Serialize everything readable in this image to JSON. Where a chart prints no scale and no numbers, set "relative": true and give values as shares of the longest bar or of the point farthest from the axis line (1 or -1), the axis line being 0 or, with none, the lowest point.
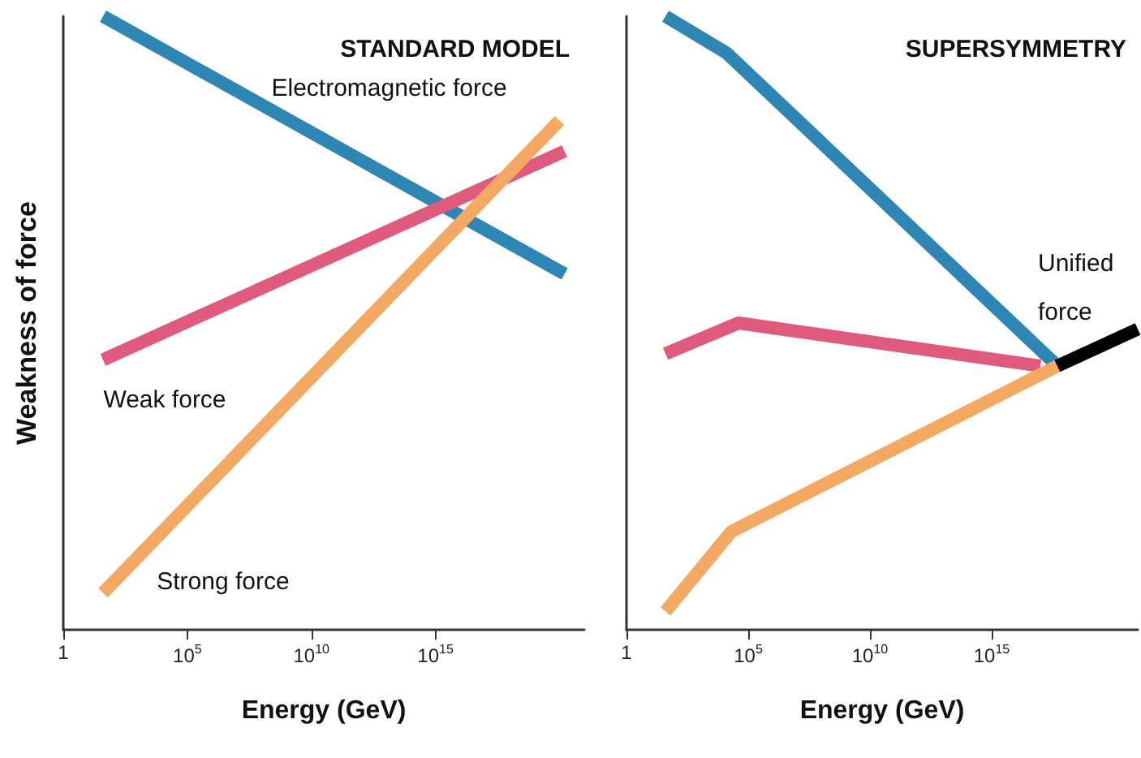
{
  "chart_data": [
    {
      "type": "line",
      "title": "STANDARD MODEL",
      "xlabel": "Energy (GeV)",
      "ylabel": "Weakness of force",
      "relative": true,
      "log": "x",
      "marker": "none",
      "line_style": "solid",
      "xlim": [
        1,
        1e+21
      ],
      "xticks": [
        {
          "value": 1,
          "label": "1"
        },
        {
          "value": 100000.0,
          "label": "10$^{5}$"
        },
        {
          "value": 10000000000.0,
          "label": "10$^{10}$"
        },
        {
          "value": 1000000000000000.0,
          "label": "10$^{15}$"
        }
      ],
      "series": [
        {
          "name": "Electromagnetic force",
          "color": "#2e86b4",
          "x": [
            40,
            1.6e+20
          ],
          "values": [
            1,
            0.58
          ]
        },
        {
          "name": "Weak force",
          "color": "#e05a7e",
          "x": [
            40,
            1.6e+20
          ],
          "values": [
            0.44,
            0.78
          ]
        },
        {
          "name": "Strong force",
          "color": "#f4a962",
          "x": [
            40,
            1e+20
          ],
          "values": [
            0.06,
            0.83
          ]
        }
      ]
    },
    {
      "type": "line",
      "title": "SUPERSYMMETRY",
      "xlabel": "Energy (GeV)",
      "relative": true,
      "log": "x",
      "marker": "none",
      "line_style": "solid",
      "xlim": [
        1,
        1e+21
      ],
      "xticks": [
        {
          "value": 1,
          "label": "1"
        },
        {
          "value": 100000.0,
          "label": "10$^{5}$"
        },
        {
          "value": 10000000000.0,
          "label": "10$^{10}$"
        },
        {
          "value": 1000000000000000.0,
          "label": "10$^{15}$"
        }
      ],
      "series": [
        {
          "color": "#2e86b4",
          "x": [
            40,
            13000.0,
            5e+17
          ],
          "values": [
            1,
            0.94,
            0.43
          ]
        },
        {
          "color": "#e05a7e",
          "x": [
            40,
            40000.0,
            1e+17
          ],
          "values": [
            0.45,
            0.5,
            0.43
          ]
        },
        {
          "color": "#f4a962",
          "x": [
            40,
            20000.0,
            5e+17
          ],
          "values": [
            0.03,
            0.16,
            0.43
          ]
        },
        {
          "name": "Unified force",
          "color": "#000000",
          "x": [
            5e+17,
            1e+21
          ],
          "values": [
            0.43,
            0.49
          ]
        }
      ]
    }
  ]
}
